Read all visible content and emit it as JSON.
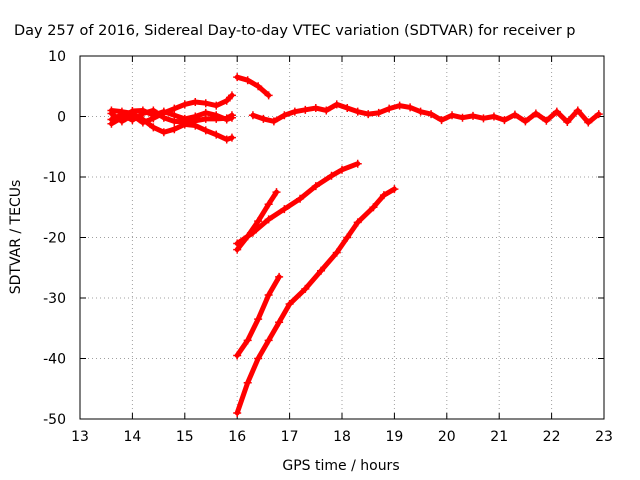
{
  "chart_data": {
    "type": "scatter",
    "title": "Day 257 of 2016, Sidereal Day-to-day VTEC variation (SDTVAR) for receiver p",
    "xlabel": "GPS time / hours",
    "ylabel": "SDTVAR / TECUs",
    "xlim": [
      13,
      23
    ],
    "ylim": [
      -50,
      10
    ],
    "x_ticks": [
      "13",
      "14",
      "15",
      "16",
      "17",
      "18",
      "19",
      "20",
      "21",
      "22",
      "23"
    ],
    "y_ticks": [
      "10",
      "0",
      "-10",
      "-20",
      "-30",
      "-40",
      "-50"
    ],
    "grid": true,
    "marker": "plus",
    "color": "#ff0000",
    "series": [
      {
        "points": [
          [
            13.6,
            0.5
          ],
          [
            13.8,
            -0.8
          ],
          [
            14.0,
            0.2
          ],
          [
            14.2,
            -1.0
          ],
          [
            14.4,
            -0.3
          ],
          [
            14.6,
            0.6
          ],
          [
            14.8,
            1.3
          ],
          [
            15.0,
            2.0
          ],
          [
            15.2,
            2.4
          ],
          [
            15.4,
            2.2
          ],
          [
            15.6,
            1.8
          ],
          [
            15.8,
            2.6
          ],
          [
            15.9,
            3.5
          ]
        ]
      },
      {
        "points": [
          [
            13.6,
            -0.5
          ],
          [
            13.8,
            0.3
          ],
          [
            14.0,
            -0.6
          ],
          [
            14.2,
            0.5
          ],
          [
            14.4,
            1.0
          ],
          [
            14.6,
            -0.2
          ],
          [
            14.8,
            -0.8
          ],
          [
            15.0,
            -0.9
          ],
          [
            15.2,
            -0.7
          ],
          [
            15.4,
            -0.4
          ],
          [
            15.6,
            -0.4
          ],
          [
            15.8,
            -0.3
          ],
          [
            15.9,
            0.2
          ]
        ]
      },
      {
        "points": [
          [
            13.6,
            1.0
          ],
          [
            13.8,
            0.8
          ],
          [
            14.0,
            0.5
          ],
          [
            14.2,
            -0.5
          ],
          [
            14.4,
            -1.8
          ],
          [
            14.6,
            -2.6
          ],
          [
            14.8,
            -2.1
          ],
          [
            15.0,
            -1.3
          ],
          [
            15.2,
            -1.5
          ],
          [
            15.4,
            -2.3
          ],
          [
            15.6,
            -3.0
          ],
          [
            15.8,
            -3.8
          ],
          [
            15.9,
            -3.5
          ]
        ]
      },
      {
        "points": [
          [
            13.6,
            -1.2
          ],
          [
            13.8,
            -0.2
          ],
          [
            14.0,
            0.9
          ],
          [
            14.2,
            1.0
          ],
          [
            14.4,
            0.2
          ],
          [
            14.6,
            0.8
          ],
          [
            14.8,
            0.2
          ],
          [
            15.0,
            -0.4
          ],
          [
            15.2,
            0.0
          ],
          [
            15.4,
            0.6
          ],
          [
            15.6,
            0.2
          ],
          [
            15.8,
            -0.5
          ],
          [
            15.9,
            -0.2
          ]
        ]
      },
      {
        "points": [
          [
            16.0,
            6.5
          ],
          [
            16.2,
            6.0
          ],
          [
            16.4,
            5.0
          ],
          [
            16.6,
            3.5
          ]
        ]
      },
      {
        "points": [
          [
            16.3,
            0.2
          ],
          [
            16.5,
            -0.4
          ],
          [
            16.7,
            -0.8
          ],
          [
            16.9,
            0.2
          ],
          [
            17.1,
            0.8
          ],
          [
            17.3,
            1.1
          ],
          [
            17.5,
            1.4
          ],
          [
            17.7,
            1.0
          ],
          [
            17.9,
            2.0
          ],
          [
            18.1,
            1.4
          ],
          [
            18.3,
            0.8
          ],
          [
            18.5,
            0.4
          ],
          [
            18.7,
            0.6
          ],
          [
            18.9,
            1.3
          ],
          [
            19.1,
            1.8
          ],
          [
            19.3,
            1.5
          ],
          [
            19.5,
            0.8
          ],
          [
            19.7,
            0.4
          ],
          [
            19.9,
            -0.6
          ],
          [
            20.1,
            0.2
          ],
          [
            20.3,
            -0.2
          ],
          [
            20.5,
            0.1
          ],
          [
            20.7,
            -0.3
          ],
          [
            20.9,
            0.0
          ],
          [
            21.1,
            -0.6
          ],
          [
            21.3,
            0.3
          ],
          [
            21.5,
            -0.8
          ],
          [
            21.7,
            0.5
          ],
          [
            21.9,
            -0.7
          ],
          [
            22.1,
            0.8
          ],
          [
            22.3,
            -0.9
          ],
          [
            22.5,
            1.0
          ],
          [
            22.7,
            -1.0
          ],
          [
            22.9,
            0.4
          ]
        ]
      },
      {
        "points": [
          [
            16.0,
            -22.0
          ],
          [
            16.2,
            -19.8
          ],
          [
            16.4,
            -17.3
          ],
          [
            16.6,
            -14.5
          ],
          [
            16.75,
            -12.5
          ]
        ]
      },
      {
        "points": [
          [
            16.0,
            -21.0
          ],
          [
            16.3,
            -19.2
          ],
          [
            16.6,
            -17.0
          ],
          [
            16.9,
            -15.3
          ],
          [
            17.2,
            -13.6
          ],
          [
            17.5,
            -11.5
          ],
          [
            17.8,
            -9.8
          ],
          [
            18.0,
            -8.8
          ],
          [
            18.3,
            -7.8
          ]
        ]
      },
      {
        "points": [
          [
            16.0,
            -39.5
          ],
          [
            16.2,
            -37.0
          ],
          [
            16.4,
            -33.5
          ],
          [
            16.6,
            -29.5
          ],
          [
            16.8,
            -26.5
          ]
        ]
      },
      {
        "points": [
          [
            16.0,
            -49.0
          ],
          [
            16.2,
            -44.0
          ],
          [
            16.4,
            -40.0
          ],
          [
            16.6,
            -37.0
          ],
          [
            16.8,
            -34.0
          ],
          [
            17.0,
            -31.0
          ],
          [
            17.3,
            -28.5
          ],
          [
            17.6,
            -25.5
          ],
          [
            17.9,
            -22.5
          ],
          [
            18.1,
            -20.0
          ],
          [
            18.3,
            -17.5
          ],
          [
            18.6,
            -15.0
          ],
          [
            18.8,
            -13.0
          ],
          [
            19.0,
            -12.0
          ]
        ]
      }
    ]
  }
}
